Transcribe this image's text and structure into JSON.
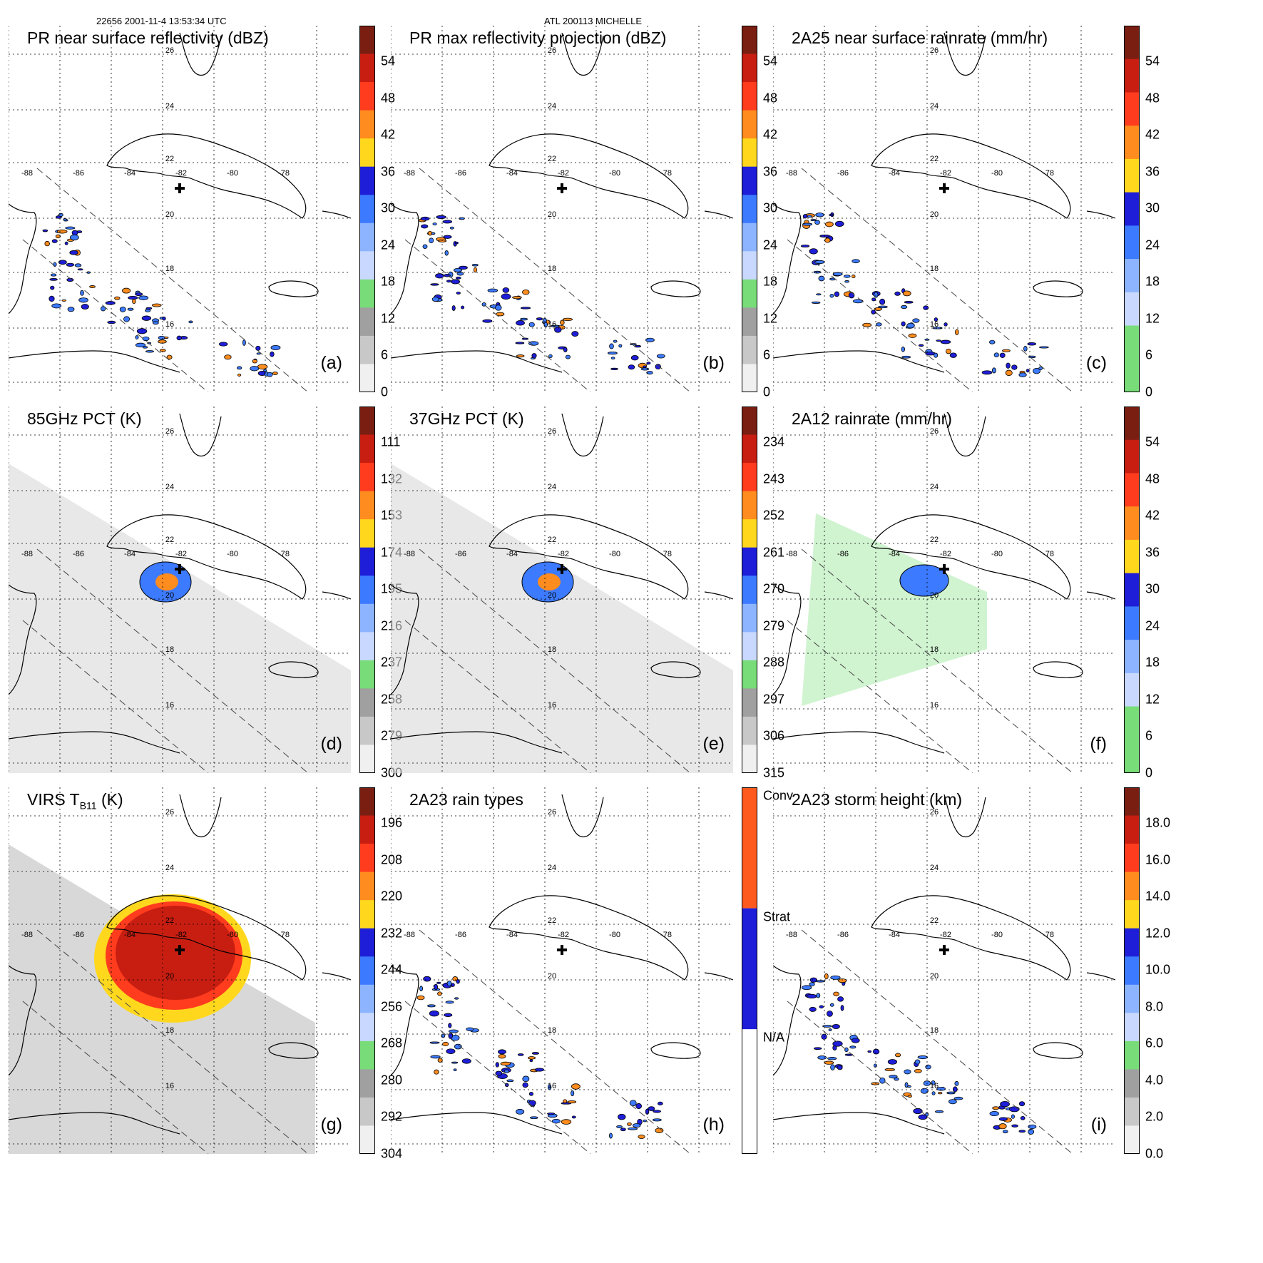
{
  "header": {
    "left": "22656 2001-11-4 13:53:34 UTC",
    "center": "ATL 200113 MICHELLE"
  },
  "center_marker": "plus-sign",
  "lon_labels": [
    "-88",
    "-86",
    "-84",
    "-82",
    "-80",
    "-78"
  ],
  "lat_labels": [
    "26",
    "24",
    "22",
    "20",
    "18",
    "16"
  ],
  "panels": [
    {
      "id": "a",
      "title": "PR near surface reflectivity (dBZ)",
      "label": "(a)",
      "field": "swath",
      "colorbar": {
        "ticks": [
          "54",
          "48",
          "42",
          "36",
          "30",
          "24",
          "18",
          "12",
          "6",
          "0"
        ],
        "colors": [
          "#7a1e12",
          "#c81e12",
          "#ff3c1e",
          "#ff8c1e",
          "#ffd81e",
          "#1e1ed8",
          "#3c7aff",
          "#8cb4ff",
          "#c8d8ff",
          "#78dc78",
          "#a0a0a0",
          "#c8c8c8",
          "#f0f0f0"
        ]
      }
    },
    {
      "id": "b",
      "title": "PR max reflectivity projection (dBZ)",
      "label": "(b)",
      "field": "swath",
      "colorbar": {
        "ticks": [
          "54",
          "48",
          "42",
          "36",
          "30",
          "24",
          "18",
          "12",
          "6",
          "0"
        ],
        "colors": [
          "#7a1e12",
          "#c81e12",
          "#ff3c1e",
          "#ff8c1e",
          "#ffd81e",
          "#1e1ed8",
          "#3c7aff",
          "#8cb4ff",
          "#c8d8ff",
          "#78dc78",
          "#a0a0a0",
          "#c8c8c8",
          "#f0f0f0"
        ]
      }
    },
    {
      "id": "c",
      "title": "2A25 near surface rainrate (mm/hr)",
      "label": "(c)",
      "field": "swath",
      "colorbar": {
        "ticks": [
          "54",
          "48",
          "42",
          "36",
          "30",
          "24",
          "18",
          "12",
          "6",
          "0"
        ],
        "colors": [
          "#7a1e12",
          "#c81e12",
          "#ff3c1e",
          "#ff8c1e",
          "#ffd81e",
          "#1e1ed8",
          "#3c7aff",
          "#8cb4ff",
          "#c8d8ff",
          "#78dc78",
          "#78dc78"
        ]
      }
    },
    {
      "id": "d",
      "title": "85GHz PCT (K)",
      "label": "(d)",
      "field": "broad",
      "colorbar": {
        "ticks": [
          "111",
          "132",
          "153",
          "174",
          "195",
          "216",
          "237",
          "258",
          "279",
          "300"
        ],
        "colors": [
          "#7a1e12",
          "#c81e12",
          "#ff3c1e",
          "#ff8c1e",
          "#ffd81e",
          "#1e1ed8",
          "#3c7aff",
          "#8cb4ff",
          "#c8d8ff",
          "#78dc78",
          "#a0a0a0",
          "#c8c8c8",
          "#f0f0f0"
        ]
      }
    },
    {
      "id": "e",
      "title": "37GHz PCT (K)",
      "label": "(e)",
      "field": "broad",
      "colorbar": {
        "ticks": [
          "234",
          "243",
          "252",
          "261",
          "270",
          "279",
          "288",
          "297",
          "306",
          "315"
        ],
        "colors": [
          "#7a1e12",
          "#c81e12",
          "#ff3c1e",
          "#ff8c1e",
          "#ffd81e",
          "#1e1ed8",
          "#3c7aff",
          "#8cb4ff",
          "#c8d8ff",
          "#78dc78",
          "#a0a0a0",
          "#c8c8c8",
          "#f0f0f0"
        ]
      }
    },
    {
      "id": "f",
      "title": "2A12 rainrate (mm/hr)",
      "label": "(f)",
      "field": "rain",
      "colorbar": {
        "ticks": [
          "54",
          "48",
          "42",
          "36",
          "30",
          "24",
          "18",
          "12",
          "6",
          "0"
        ],
        "colors": [
          "#7a1e12",
          "#c81e12",
          "#ff3c1e",
          "#ff8c1e",
          "#ffd81e",
          "#1e1ed8",
          "#3c7aff",
          "#8cb4ff",
          "#c8d8ff",
          "#78dc78",
          "#78dc78"
        ]
      }
    },
    {
      "id": "g",
      "title_main": "VIRS T",
      "title_sub": "B11",
      "title_end": " (K)",
      "label": "(g)",
      "field": "virs",
      "colorbar": {
        "ticks": [
          "196",
          "208",
          "220",
          "232",
          "244",
          "256",
          "268",
          "280",
          "292",
          "304"
        ],
        "colors": [
          "#7a1e12",
          "#c81e12",
          "#ff3c1e",
          "#ff8c1e",
          "#ffd81e",
          "#1e1ed8",
          "#3c7aff",
          "#8cb4ff",
          "#c8d8ff",
          "#78dc78",
          "#a0a0a0",
          "#c8c8c8",
          "#f0f0f0"
        ]
      }
    },
    {
      "id": "h",
      "title": "2A23 rain types",
      "label": "(h)",
      "field": "swath",
      "colorbar": {
        "ticks": [
          "Conv",
          "Strat",
          "N/A"
        ],
        "colors": [
          "#ff5a1e",
          "#1e1ed8",
          "#ffffff"
        ],
        "categorical": true
      }
    },
    {
      "id": "i",
      "title": "2A23 storm height (km)",
      "label": "(i)",
      "field": "swath",
      "colorbar": {
        "ticks": [
          "18.0",
          "16.0",
          "14.0",
          "12.0",
          "10.0",
          "8.0",
          "6.0",
          "4.0",
          "2.0",
          "0.0"
        ],
        "colors": [
          "#7a1e12",
          "#c81e12",
          "#ff3c1e",
          "#ff8c1e",
          "#ffd81e",
          "#1e1ed8",
          "#3c7aff",
          "#8cb4ff",
          "#c8d8ff",
          "#78dc78",
          "#a0a0a0",
          "#c8c8c8",
          "#f0f0f0"
        ]
      }
    }
  ]
}
